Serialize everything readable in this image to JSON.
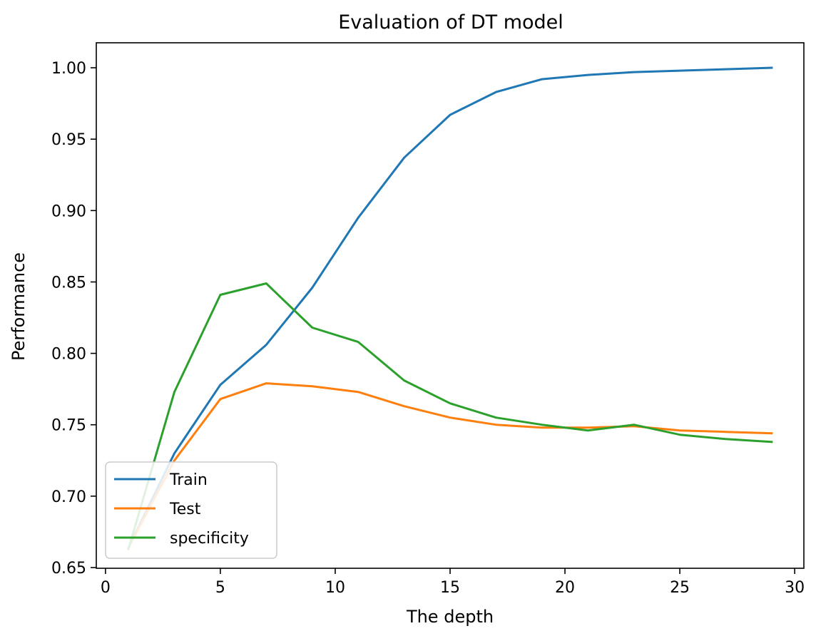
{
  "chart_data": {
    "type": "line",
    "title": "Evaluation of DT model",
    "xlabel": "The depth",
    "ylabel": "Performance",
    "xlim": [
      -0.4,
      30.4
    ],
    "ylim": [
      0.6495,
      1.0175
    ],
    "xticks": [
      0,
      5,
      10,
      15,
      20,
      25,
      30
    ],
    "yticks": [
      0.65,
      0.7,
      0.75,
      0.8,
      0.85,
      0.9,
      0.95,
      1.0
    ],
    "grid": false,
    "legend_position": "lower-left",
    "x": [
      1,
      3,
      5,
      7,
      9,
      11,
      13,
      15,
      17,
      19,
      21,
      23,
      25,
      27,
      29
    ],
    "series": [
      {
        "name": "Train",
        "color": "#1f77b4",
        "values": [
          0.664,
          0.73,
          0.778,
          0.806,
          0.846,
          0.895,
          0.937,
          0.967,
          0.983,
          0.992,
          0.995,
          0.997,
          0.998,
          0.999,
          1.0
        ]
      },
      {
        "name": "Test",
        "color": "#ff7f0e",
        "values": [
          0.664,
          0.725,
          0.768,
          0.779,
          0.777,
          0.773,
          0.763,
          0.755,
          0.75,
          0.748,
          0.748,
          0.749,
          0.746,
          0.745,
          0.744
        ]
      },
      {
        "name": "specificity",
        "color": "#2ca02c",
        "values": [
          0.663,
          0.773,
          0.841,
          0.849,
          0.818,
          0.808,
          0.781,
          0.765,
          0.755,
          0.75,
          0.746,
          0.75,
          0.743,
          0.74,
          0.738
        ]
      }
    ]
  }
}
